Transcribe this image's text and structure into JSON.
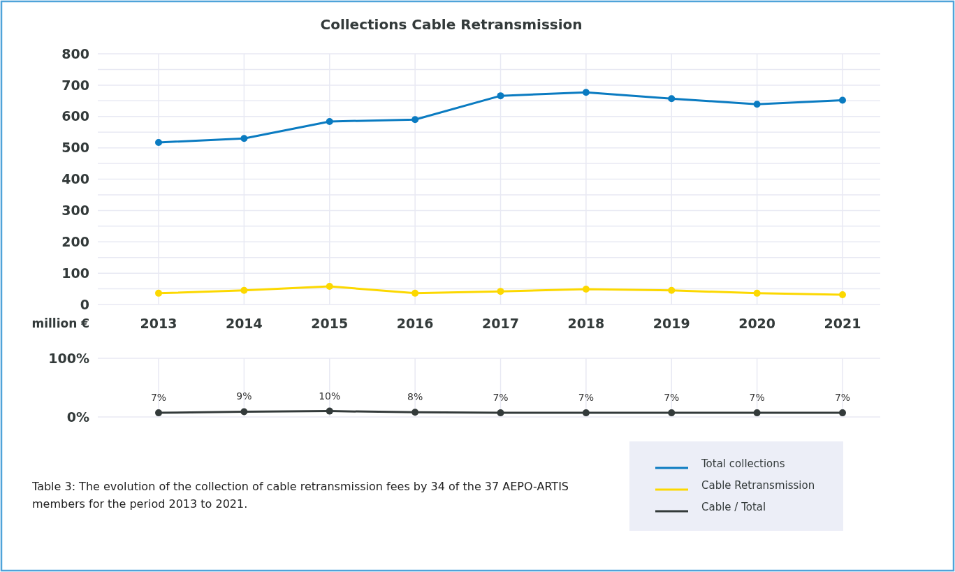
{
  "chart_data": [
    {
      "type": "line",
      "title": "Collections Cable Retransmission",
      "ylabel": "million €",
      "categories": [
        "2013",
        "2014",
        "2015",
        "2016",
        "2017",
        "2018",
        "2019",
        "2020",
        "2021"
      ],
      "series": [
        {
          "name": "Total collections",
          "color": "#0a7bc1",
          "values": [
            517,
            530,
            584,
            590,
            666,
            677,
            657,
            639,
            652
          ]
        },
        {
          "name": "Cable Retransmission",
          "color": "#fcd800",
          "values": [
            36,
            45,
            58,
            36,
            42,
            49,
            45,
            36,
            31
          ]
        }
      ],
      "ylim": [
        0,
        800
      ],
      "yticks": [
        0,
        {
          "value": 50,
          "label": null
        },
        100,
        {
          "value": 150,
          "label": null
        },
        200,
        {
          "value": 250,
          "label": null
        },
        300,
        {
          "value": 350,
          "label": null
        },
        400,
        {
          "value": 450,
          "label": null
        },
        500,
        {
          "value": 550,
          "label": null
        },
        600,
        {
          "value": 650,
          "label": null
        },
        700,
        {
          "value": 750,
          "label": null
        },
        800
      ],
      "grid": true,
      "marker": "circle",
      "line_style": "solid",
      "legend": "bottom right"
    },
    {
      "type": "line",
      "categories": [
        "2013",
        "2014",
        "2015",
        "2016",
        "2017",
        "2018",
        "2019",
        "2020",
        "2021"
      ],
      "series": [
        {
          "name": "Cable / Total",
          "color": "#333a3a",
          "values": [
            7,
            9,
            10,
            8,
            7,
            7,
            7,
            7,
            7
          ],
          "value_labels": [
            "7%",
            "9%",
            "10%",
            "8%",
            "7%",
            "7%",
            "7%",
            "7%",
            "7%"
          ]
        }
      ],
      "ylim": [
        0,
        100
      ],
      "yticks": [
        {
          "value": 0,
          "label": "0%"
        },
        {
          "value": 100,
          "label": "100%"
        }
      ],
      "tick_labels": "y",
      "grid": true,
      "marker": "circle",
      "line_style": "solid",
      "legend": "bottom right",
      "annotations": [
        "Table 3: The evolution of the collection of cable retransmission fees by 34 of the 37 AEPO-ARTIS members for the period 2013 to 2021."
      ]
    }
  ]
}
